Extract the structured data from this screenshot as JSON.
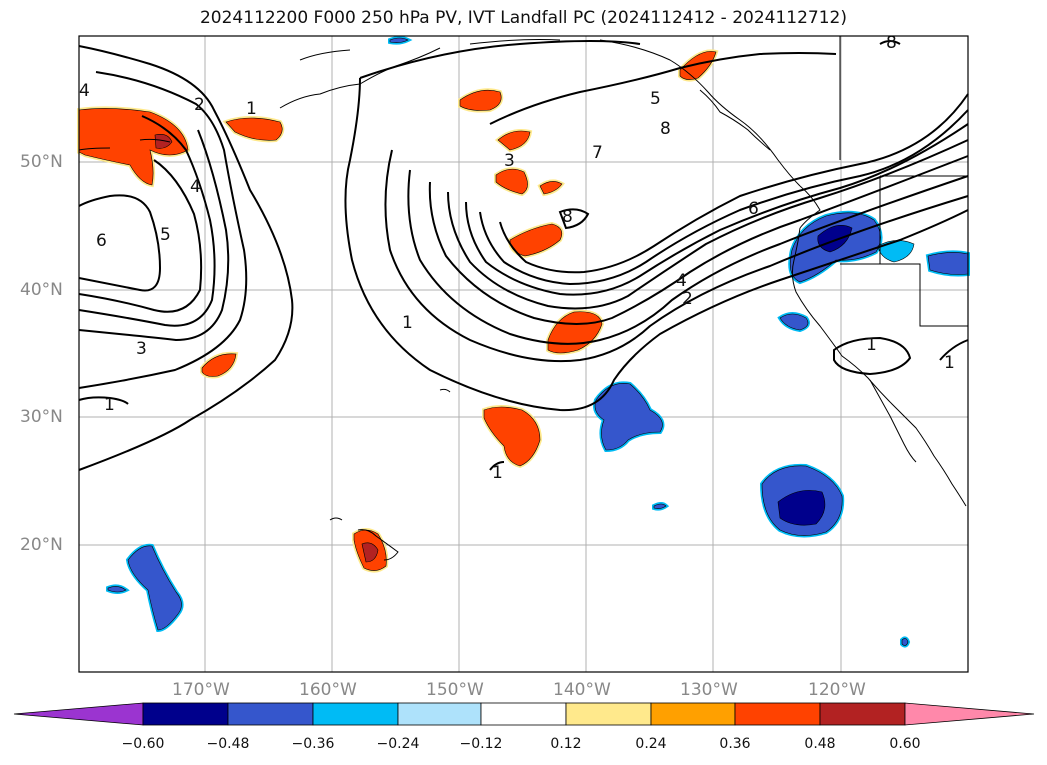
{
  "title": "2024112200 F000 250 hPa PV, IVT Landfall PC (2024112412 - 2024112712)",
  "lat_labels": [
    "50°N",
    "40°N",
    "30°N",
    "20°N"
  ],
  "lon_labels": [
    "170°W",
    "160°W",
    "150°W",
    "140°W",
    "130°W",
    "120°W"
  ],
  "contour_labels": [
    "1",
    "2",
    "3",
    "4",
    "5",
    "6",
    "7",
    "8"
  ],
  "colorbar": {
    "tick_labels": [
      "−0.60",
      "−0.48",
      "−0.36",
      "−0.24",
      "−0.12",
      "0.12",
      "0.24",
      "0.36",
      "0.48",
      "0.60"
    ],
    "colors": [
      "#9b34d0",
      "#00008c",
      "#3556cc",
      "#00bbf5",
      "#aee2fb",
      "#ffffff",
      "#ffe98c",
      "#ffa000",
      "#ff4200",
      "#b22222",
      "#ff88aa"
    ]
  },
  "shading_colors": {
    "pos_outer": "#ffe98c",
    "pos_mid": "#ff4200",
    "pos_core": "#b22222",
    "neg_outer": "#00bbf5",
    "neg_mid": "#3556cc",
    "neg_core": "#00008c"
  }
}
